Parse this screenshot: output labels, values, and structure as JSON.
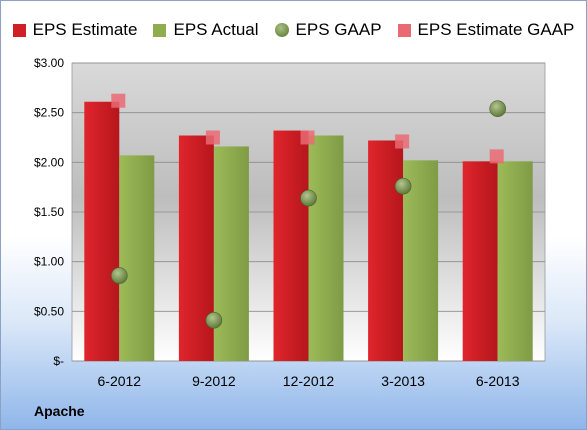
{
  "chart_data": {
    "type": "bar",
    "title": "",
    "xlabel": "",
    "ylabel": "",
    "categories": [
      "6-2012",
      "9-2012",
      "12-2012",
      "3-2013",
      "6-2013"
    ],
    "series": [
      {
        "name": "EPS Estimate",
        "kind": "bar",
        "color": "#d11f26",
        "values": [
          2.61,
          2.27,
          2.32,
          2.22,
          2.01
        ]
      },
      {
        "name": "EPS Actual",
        "kind": "bar",
        "color": "#8fad4e",
        "values": [
          2.07,
          2.16,
          2.27,
          2.02,
          2.01
        ]
      },
      {
        "name": "EPS GAAP",
        "kind": "marker-circle",
        "color": "#6e8a45",
        "values": [
          0.86,
          0.41,
          1.64,
          1.76,
          2.54
        ]
      },
      {
        "name": "EPS Estimate GAAP",
        "kind": "marker-square",
        "color": "#ea6a73",
        "values": [
          2.62,
          2.25,
          2.25,
          2.21,
          2.06
        ]
      }
    ],
    "ylim": [
      0,
      3.0
    ],
    "yticks": [
      0,
      0.5,
      1.0,
      1.5,
      2.0,
      2.5,
      3.0
    ],
    "ytick_labels": [
      "$-",
      "$0.50",
      "$1.00",
      "$1.50",
      "$2.00",
      "$2.50",
      "$3.00"
    ],
    "grid": true,
    "legend_position": "top"
  },
  "company_label": "Apache"
}
